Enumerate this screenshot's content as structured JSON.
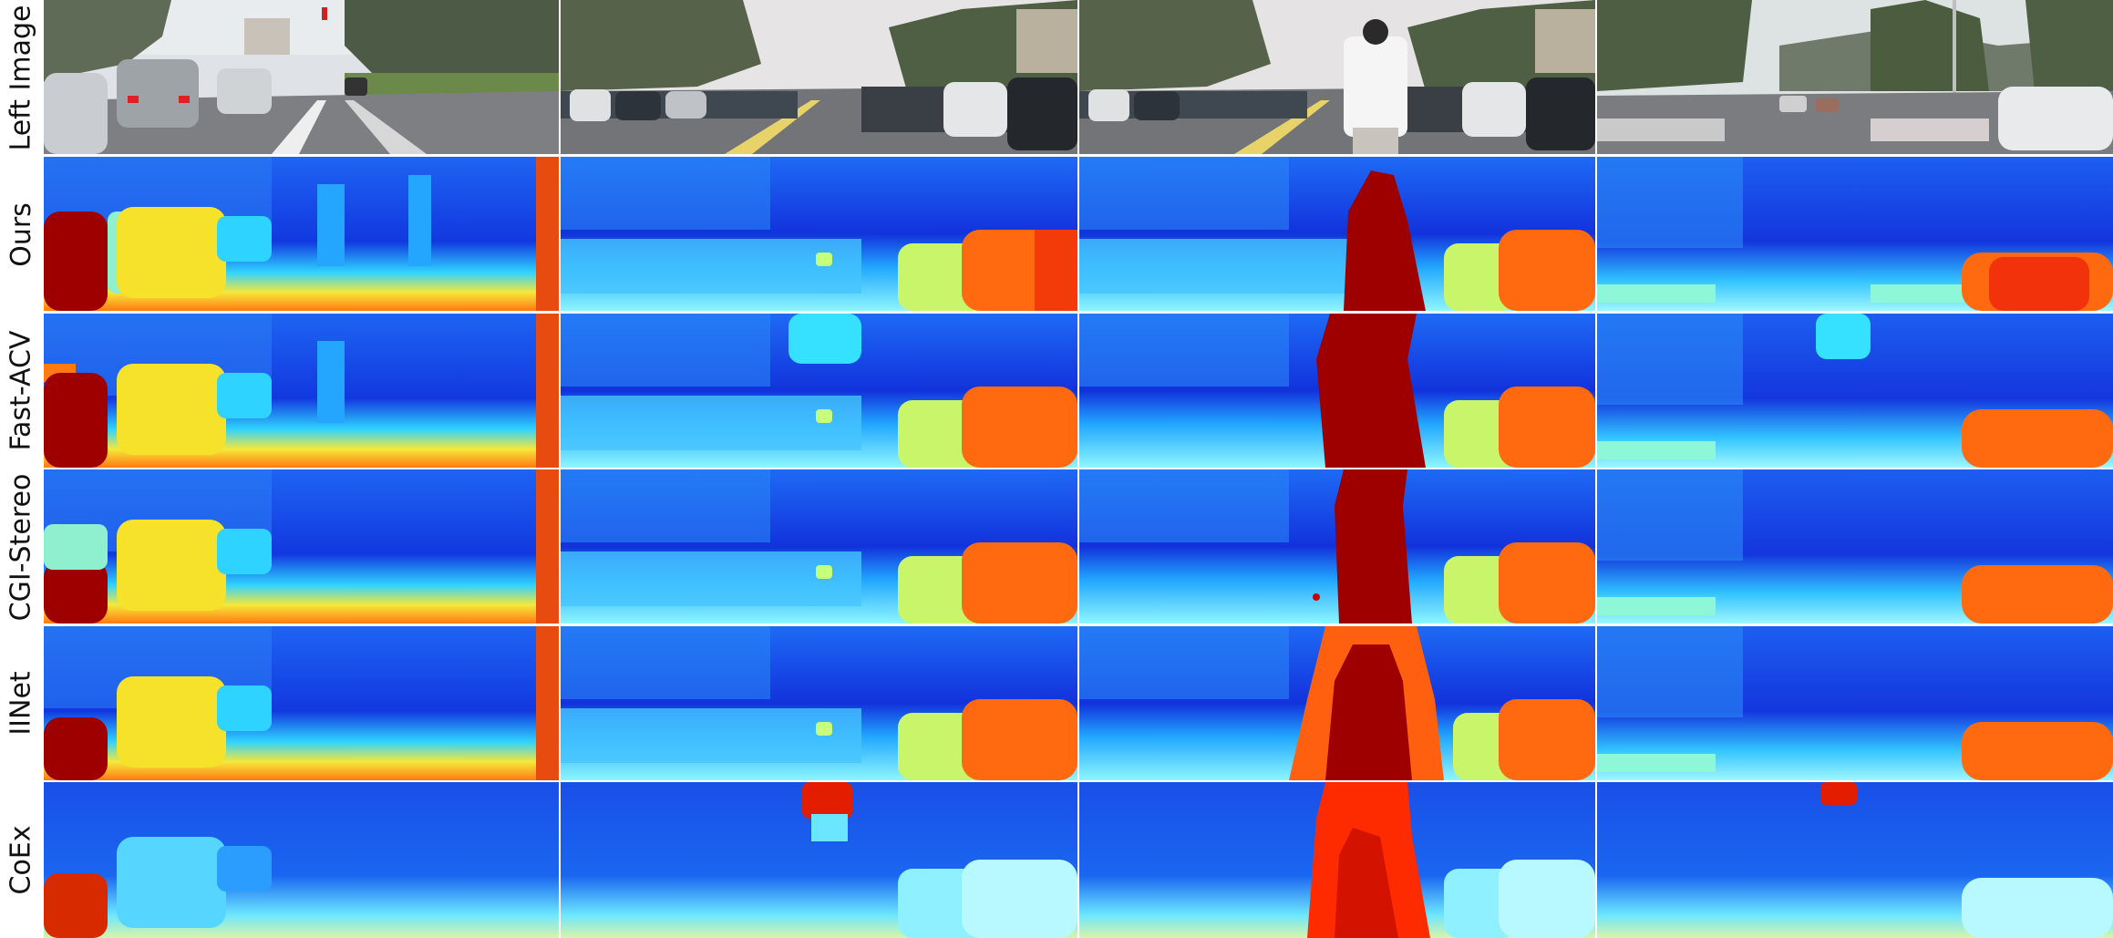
{
  "row_labels": [
    "Left Image",
    "Ours",
    "Fast-ACV",
    "CGI-Stereo",
    "IINet",
    "CoEx"
  ],
  "colors": {
    "depth_far": "#0a1fd6",
    "depth_mid": "#21b3ff",
    "depth_near_cyan": "#7ff7ff",
    "depth_yellow": "#f6e83a",
    "depth_orange": "#ff7a12",
    "depth_near": "#9e0000"
  }
}
